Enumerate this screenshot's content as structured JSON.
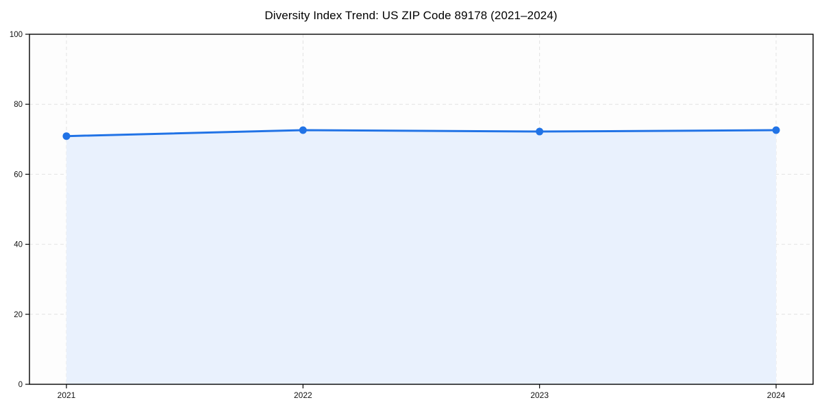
{
  "chart": {
    "title": "Diversity Index Trend: US ZIP Code 89178 (2021–2024)"
  },
  "chart_data": {
    "type": "area",
    "categories": [
      "2021",
      "2022",
      "2023",
      "2024"
    ],
    "series": [
      {
        "name": "Diversity Index",
        "values": [
          70.9,
          72.6,
          72.2,
          72.6
        ]
      }
    ],
    "title": "Diversity Index Trend: US ZIP Code 89178 (2021–2024)",
    "xlabel": "",
    "ylabel": "",
    "ylim": [
      0,
      100
    ],
    "yticks": [
      0,
      20,
      40,
      60,
      80,
      100
    ],
    "grid": true,
    "grid_style": "dashed",
    "legend": false,
    "colors": {
      "line": "#2173e6",
      "marker": "#2173e6",
      "area_fill": "#e9f1fd",
      "grid": "#e2e2e2",
      "axis": "#000000",
      "tick_label": "#111111",
      "plot_background": "#fdfdfd",
      "page_background": "#ffffff"
    }
  }
}
